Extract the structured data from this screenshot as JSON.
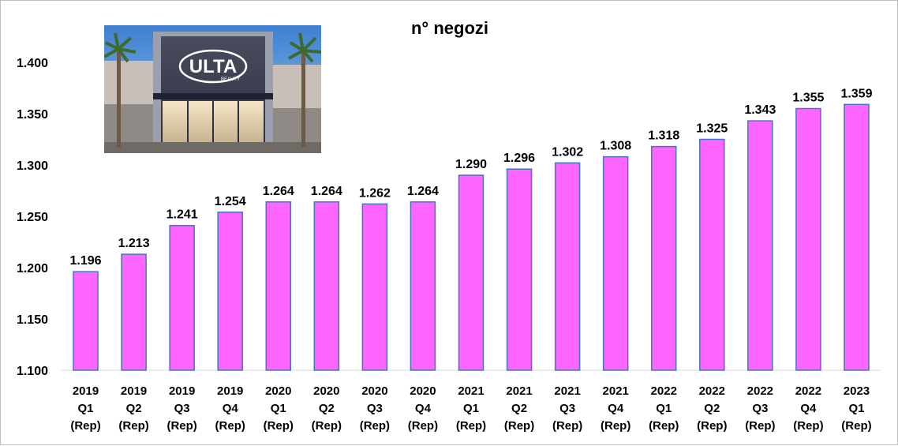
{
  "chart_data": {
    "type": "bar",
    "title": "n° negozi",
    "xlabel": "",
    "ylabel": "",
    "ylim": [
      1100,
      1400
    ],
    "yticks": [
      1100,
      1150,
      1200,
      1250,
      1300,
      1350,
      1400
    ],
    "ytick_labels": [
      "1.100",
      "1.150",
      "1.200",
      "1.250",
      "1.300",
      "1.350",
      "1.400"
    ],
    "grid": false,
    "legend": "none",
    "bar_color": "#FF66FF",
    "bar_edge_color": "#4472C4",
    "categories": [
      [
        "2019",
        "Q1",
        "(Rep)"
      ],
      [
        "2019",
        "Q2",
        "(Rep)"
      ],
      [
        "2019",
        "Q3",
        "(Rep)"
      ],
      [
        "2019",
        "Q4",
        "(Rep)"
      ],
      [
        "2020",
        "Q1",
        "(Rep)"
      ],
      [
        "2020",
        "Q2",
        "(Rep)"
      ],
      [
        "2020",
        "Q3",
        "(Rep)"
      ],
      [
        "2020",
        "Q4",
        "(Rep)"
      ],
      [
        "2021",
        "Q1",
        "(Rep)"
      ],
      [
        "2021",
        "Q2",
        "(Rep)"
      ],
      [
        "2021",
        "Q3",
        "(Rep)"
      ],
      [
        "2021",
        "Q4",
        "(Rep)"
      ],
      [
        "2022",
        "Q1",
        "(Rep)"
      ],
      [
        "2022",
        "Q2",
        "(Rep)"
      ],
      [
        "2022",
        "Q3",
        "(Rep)"
      ],
      [
        "2022",
        "Q4",
        "(Rep)"
      ],
      [
        "2023",
        "Q1",
        "(Rep)"
      ]
    ],
    "values": [
      1196,
      1213,
      1241,
      1254,
      1264,
      1264,
      1262,
      1264,
      1290,
      1296,
      1302,
      1308,
      1318,
      1325,
      1343,
      1355,
      1359
    ],
    "value_labels": [
      "1.196",
      "1.213",
      "1.241",
      "1.254",
      "1.264",
      "1.264",
      "1.262",
      "1.264",
      "1.290",
      "1.296",
      "1.302",
      "1.308",
      "1.318",
      "1.325",
      "1.343",
      "1.355",
      "1.359"
    ]
  },
  "photo": {
    "logo_text": "ULTA",
    "logo_subtext": "BEAUTY"
  }
}
